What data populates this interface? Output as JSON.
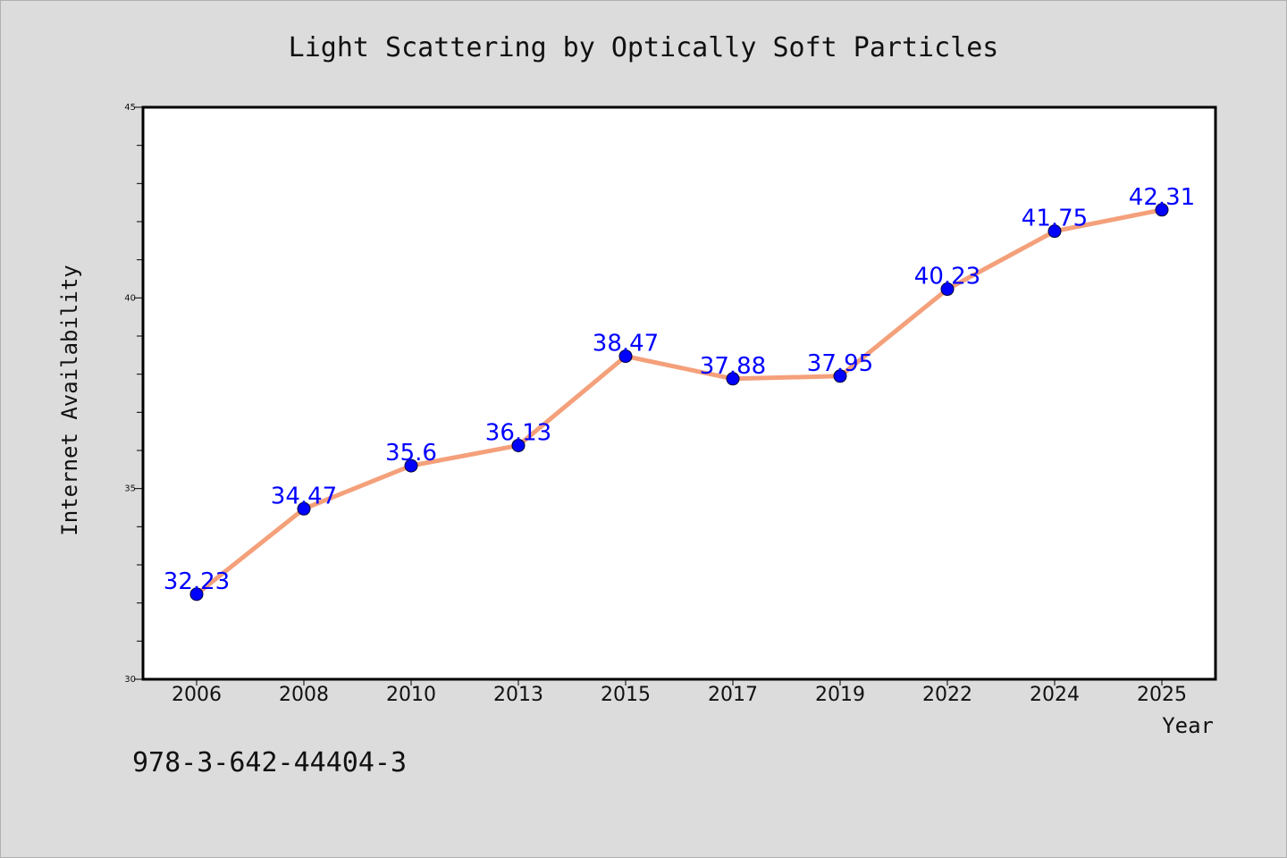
{
  "chart_data": {
    "type": "line",
    "title": "Light Scattering by Optically Soft Particles",
    "xlabel": "Year",
    "ylabel": "Internet Availability",
    "categories": [
      "2006",
      "2008",
      "2010",
      "2013",
      "2015",
      "2017",
      "2019",
      "2022",
      "2024",
      "2025"
    ],
    "series": [
      {
        "values": [
          32.23,
          34.47,
          35.6,
          36.13,
          38.47,
          37.88,
          37.95,
          40.23,
          41.75,
          42.31
        ]
      }
    ],
    "data_labels": [
      "32.23",
      "34.47",
      "35.6",
      "36.13",
      "38.47",
      "37.88",
      "37.95",
      "40.23",
      "41.75",
      "42.31"
    ],
    "ylim": [
      30,
      45
    ],
    "y_ticks": [
      "30",
      "35",
      "40",
      "45"
    ],
    "line_color": "#f4a07a",
    "marker_color": "#0000ff",
    "label_color": "#0000ff",
    "grid": false,
    "legend": "none"
  },
  "footer": {
    "isbn": "978-3-642-44404-3"
  }
}
